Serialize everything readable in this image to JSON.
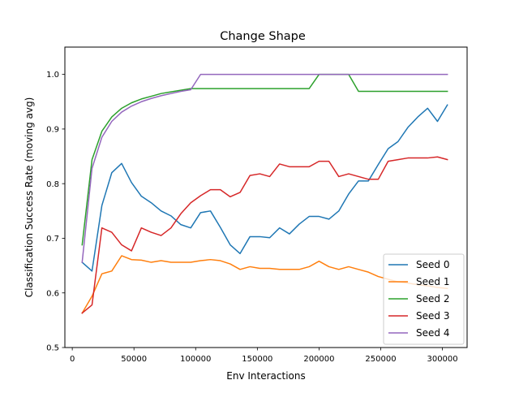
{
  "chart_data": {
    "type": "line",
    "title": "Change Shape",
    "xlabel": "Env Interactions",
    "ylabel": "Classification Success Rate (moving avg)",
    "xlim": [
      -6000,
      320000
    ],
    "ylim": [
      0.5,
      1.05
    ],
    "xticks": [
      0,
      50000,
      100000,
      150000,
      200000,
      250000,
      300000
    ],
    "xtick_labels": [
      "0",
      "50000",
      "100000",
      "150000",
      "200000",
      "250000",
      "300000"
    ],
    "yticks": [
      0.5,
      0.6,
      0.7,
      0.8,
      0.9,
      1.0
    ],
    "ytick_labels": [
      "0.5",
      "0.6",
      "0.7",
      "0.8",
      "0.9",
      "1.0"
    ],
    "legend_position": "lower-right",
    "grid": false,
    "series": [
      {
        "name": "Seed 0",
        "color": "#1f77b4",
        "x": [
          8000,
          16000,
          24000,
          32000,
          40000,
          48000,
          56000,
          64000,
          72000,
          80000,
          88000,
          96000,
          104000,
          112000,
          120000,
          128000,
          136000,
          144000,
          152000,
          160000,
          168000,
          176000,
          184000,
          192000,
          200000,
          208000,
          216000,
          224000,
          232000,
          240000,
          248000,
          256000,
          264000,
          272000,
          280000,
          288000,
          296000,
          304000
        ],
        "y": [
          0.656,
          0.64,
          0.76,
          0.82,
          0.837,
          0.802,
          0.777,
          0.765,
          0.75,
          0.741,
          0.725,
          0.719,
          0.747,
          0.75,
          0.72,
          0.688,
          0.672,
          0.703,
          0.703,
          0.701,
          0.719,
          0.708,
          0.726,
          0.74,
          0.74,
          0.735,
          0.75,
          0.781,
          0.805,
          0.805,
          0.835,
          0.864,
          0.877,
          0.903,
          0.922,
          0.938,
          0.914,
          0.944
        ]
      },
      {
        "name": "Seed 1",
        "color": "#ff7f0e",
        "x": [
          8000,
          16000,
          24000,
          32000,
          40000,
          48000,
          56000,
          64000,
          72000,
          80000,
          88000,
          96000,
          104000,
          112000,
          120000,
          128000,
          136000,
          144000,
          152000,
          160000,
          168000,
          176000,
          184000,
          192000,
          200000,
          208000,
          216000,
          224000,
          232000,
          240000,
          248000,
          256000,
          264000,
          272000,
          280000,
          288000,
          296000,
          304000
        ],
        "y": [
          0.563,
          0.594,
          0.635,
          0.64,
          0.668,
          0.661,
          0.66,
          0.656,
          0.659,
          0.656,
          0.656,
          0.656,
          0.659,
          0.661,
          0.659,
          0.653,
          0.643,
          0.648,
          0.645,
          0.645,
          0.643,
          0.643,
          0.643,
          0.648,
          0.658,
          0.648,
          0.643,
          0.648,
          0.643,
          0.638,
          0.63,
          0.625,
          0.62,
          0.618,
          0.615,
          0.613,
          0.61,
          0.608
        ]
      },
      {
        "name": "Seed 2",
        "color": "#2ca02c",
        "x": [
          8000,
          16000,
          24000,
          32000,
          40000,
          48000,
          56000,
          64000,
          72000,
          80000,
          88000,
          96000,
          104000,
          112000,
          120000,
          128000,
          136000,
          144000,
          152000,
          160000,
          168000,
          176000,
          184000,
          192000,
          200000,
          208000,
          216000,
          224000,
          232000,
          240000,
          248000,
          256000,
          264000,
          272000,
          280000,
          288000,
          296000,
          304000
        ],
        "y": [
          0.688,
          0.844,
          0.896,
          0.922,
          0.938,
          0.948,
          0.955,
          0.96,
          0.965,
          0.968,
          0.971,
          0.974,
          0.974,
          0.974,
          0.974,
          0.974,
          0.974,
          0.974,
          0.974,
          0.974,
          0.974,
          0.974,
          0.974,
          0.974,
          1.0,
          1.0,
          1.0,
          1.0,
          0.969,
          0.969,
          0.969,
          0.969,
          0.969,
          0.969,
          0.969,
          0.969,
          0.969,
          0.969
        ]
      },
      {
        "name": "Seed 3",
        "color": "#d62728",
        "x": [
          8000,
          16000,
          24000,
          32000,
          40000,
          48000,
          56000,
          64000,
          72000,
          80000,
          88000,
          96000,
          104000,
          112000,
          120000,
          128000,
          136000,
          144000,
          152000,
          160000,
          168000,
          176000,
          184000,
          192000,
          200000,
          208000,
          216000,
          224000,
          232000,
          240000,
          248000,
          256000,
          264000,
          272000,
          280000,
          288000,
          296000,
          304000
        ],
        "y": [
          0.563,
          0.578,
          0.719,
          0.711,
          0.688,
          0.677,
          0.719,
          0.711,
          0.705,
          0.719,
          0.745,
          0.765,
          0.778,
          0.789,
          0.789,
          0.776,
          0.784,
          0.815,
          0.818,
          0.813,
          0.836,
          0.831,
          0.831,
          0.831,
          0.841,
          0.841,
          0.813,
          0.818,
          0.813,
          0.808,
          0.808,
          0.841,
          0.844,
          0.847,
          0.847,
          0.847,
          0.849,
          0.844
        ]
      },
      {
        "name": "Seed 4",
        "color": "#9467bd",
        "x": [
          8000,
          16000,
          24000,
          32000,
          40000,
          48000,
          56000,
          64000,
          72000,
          80000,
          88000,
          96000,
          104000,
          112000,
          120000,
          128000,
          136000,
          144000,
          152000,
          160000,
          168000,
          176000,
          184000,
          192000,
          200000,
          208000,
          216000,
          224000,
          232000,
          240000,
          248000,
          256000,
          264000,
          272000,
          280000,
          288000,
          296000,
          304000
        ],
        "y": [
          0.656,
          0.828,
          0.885,
          0.914,
          0.931,
          0.942,
          0.95,
          0.956,
          0.961,
          0.965,
          0.969,
          0.972,
          1.0,
          1.0,
          1.0,
          1.0,
          1.0,
          1.0,
          1.0,
          1.0,
          1.0,
          1.0,
          1.0,
          1.0,
          1.0,
          1.0,
          1.0,
          1.0,
          1.0,
          1.0,
          1.0,
          1.0,
          1.0,
          1.0,
          1.0,
          1.0,
          1.0,
          1.0
        ]
      }
    ]
  }
}
